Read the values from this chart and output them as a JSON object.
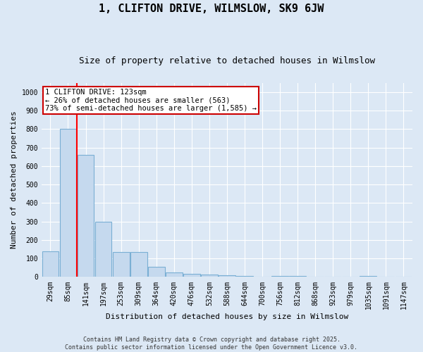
{
  "title": "1, CLIFTON DRIVE, WILMSLOW, SK9 6JW",
  "subtitle": "Size of property relative to detached houses in Wilmslow",
  "xlabel": "Distribution of detached houses by size in Wilmslow",
  "ylabel": "Number of detached properties",
  "bins": [
    "29sqm",
    "85sqm",
    "141sqm",
    "197sqm",
    "253sqm",
    "309sqm",
    "364sqm",
    "420sqm",
    "476sqm",
    "532sqm",
    "588sqm",
    "644sqm",
    "700sqm",
    "756sqm",
    "812sqm",
    "868sqm",
    "923sqm",
    "979sqm",
    "1035sqm",
    "1091sqm",
    "1147sqm"
  ],
  "values": [
    140,
    800,
    660,
    300,
    135,
    135,
    55,
    25,
    18,
    15,
    10,
    5,
    0,
    5,
    5,
    0,
    0,
    0,
    5,
    0,
    0
  ],
  "bar_color": "#c5d9ee",
  "bar_edge_color": "#7aafd4",
  "red_line_x": 1.5,
  "annotation_line1": "1 CLIFTON DRIVE: 123sqm",
  "annotation_line2": "← 26% of detached houses are smaller (563)",
  "annotation_line3": "73% of semi-detached houses are larger (1,585) →",
  "annotation_box_facecolor": "#ffffff",
  "annotation_box_edgecolor": "#cc0000",
  "ylim": [
    0,
    1050
  ],
  "yticks": [
    0,
    100,
    200,
    300,
    400,
    500,
    600,
    700,
    800,
    900,
    1000
  ],
  "background_color": "#dce8f5",
  "grid_color": "#ffffff",
  "footer1": "Contains HM Land Registry data © Crown copyright and database right 2025.",
  "footer2": "Contains public sector information licensed under the Open Government Licence v3.0.",
  "title_fontsize": 11,
  "subtitle_fontsize": 9,
  "tick_fontsize": 7,
  "ylabel_fontsize": 8,
  "xlabel_fontsize": 8,
  "footer_fontsize": 6,
  "annotation_fontsize": 7.5
}
